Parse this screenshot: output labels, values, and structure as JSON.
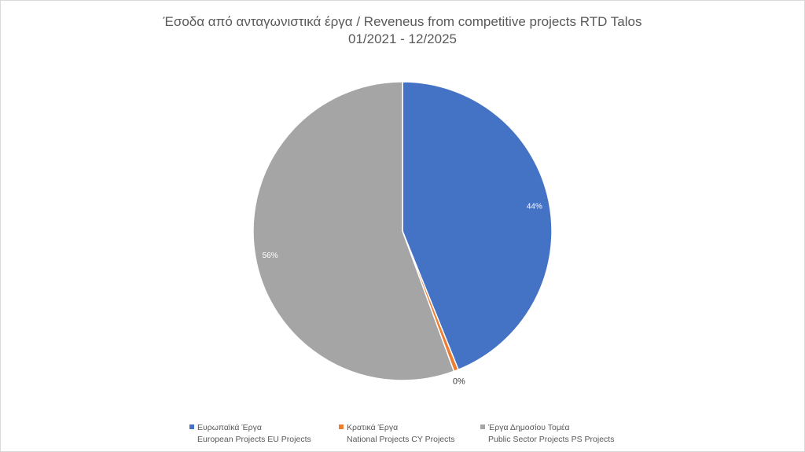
{
  "chart_data": {
    "type": "pie",
    "title": "Έσοδα από ανταγωνιστικά έργα / Reveneus from competitive projects RTD Talos",
    "subtitle": "01/2021 - 12/2025",
    "legend_position": "bottom",
    "slices": [
      {
        "name_gr": "Ευρωπαϊκά Έργα",
        "name_en": "European Projects EU Projects",
        "value": 43.9,
        "label": "44%",
        "color": "#4472C4"
      },
      {
        "name_gr": "Κρατικά Έργα",
        "name_en": "National Projects CY Projects",
        "value": 0.5,
        "label": "0%",
        "color": "#ED7D31"
      },
      {
        "name_gr": "Έργα Δημοσίου Τομέα",
        "name_en": "Public Sector Projects PS Projects",
        "value": 55.6,
        "label": "56%",
        "color": "#A5A5A5"
      }
    ]
  }
}
